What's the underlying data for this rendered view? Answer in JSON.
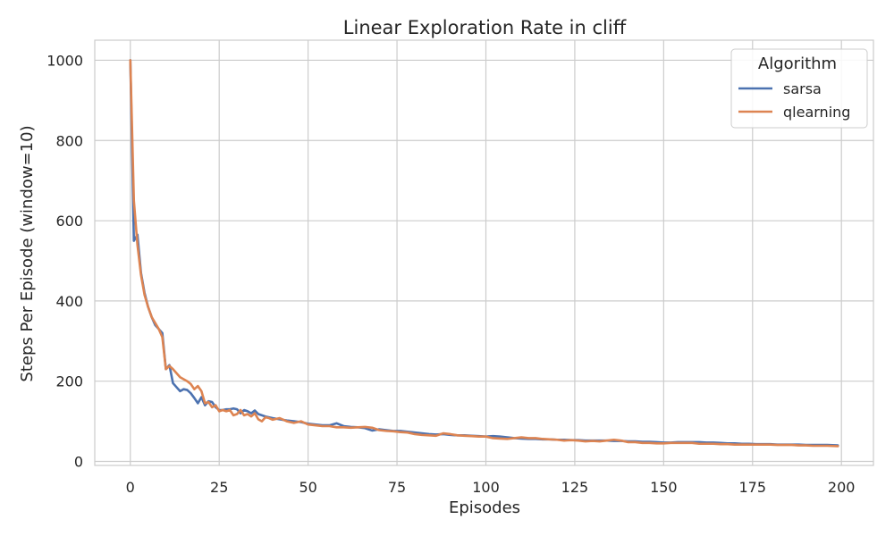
{
  "chart_data": {
    "type": "line",
    "title": "Linear Exploration Rate in cliff",
    "xlabel": "Episodes",
    "ylabel": "Steps Per Episode (window=10)",
    "xlim": [
      -10,
      209
    ],
    "ylim": [
      -10,
      1050
    ],
    "xticks": [
      0,
      25,
      50,
      75,
      100,
      125,
      150,
      175,
      200
    ],
    "yticks": [
      0,
      200,
      400,
      600,
      800,
      1000
    ],
    "xtick_labels": [
      "0",
      "25",
      "50",
      "75",
      "100",
      "125",
      "150",
      "175",
      "200"
    ],
    "ytick_labels": [
      "0",
      "200",
      "400",
      "600",
      "800",
      "1000"
    ],
    "grid": true,
    "legend": {
      "title": "Algorithm",
      "position": "top-right"
    },
    "series": [
      {
        "name": "sarsa",
        "color": "#4c72b0",
        "points": [
          [
            0,
            1000
          ],
          [
            1,
            550
          ],
          [
            2,
            565
          ],
          [
            3,
            470
          ],
          [
            4,
            420
          ],
          [
            5,
            385
          ],
          [
            6,
            360
          ],
          [
            7,
            340
          ],
          [
            8,
            330
          ],
          [
            9,
            320
          ],
          [
            10,
            230
          ],
          [
            11,
            240
          ],
          [
            12,
            195
          ],
          [
            13,
            185
          ],
          [
            14,
            175
          ],
          [
            15,
            180
          ],
          [
            16,
            178
          ],
          [
            17,
            170
          ],
          [
            18,
            158
          ],
          [
            19,
            145
          ],
          [
            20,
            160
          ],
          [
            21,
            140
          ],
          [
            22,
            150
          ],
          [
            23,
            148
          ],
          [
            24,
            135
          ],
          [
            25,
            128
          ],
          [
            26,
            128
          ],
          [
            27,
            130
          ],
          [
            28,
            130
          ],
          [
            29,
            132
          ],
          [
            30,
            130
          ],
          [
            31,
            120
          ],
          [
            32,
            128
          ],
          [
            33,
            125
          ],
          [
            34,
            120
          ],
          [
            35,
            127
          ],
          [
            36,
            118
          ],
          [
            37,
            115
          ],
          [
            38,
            112
          ],
          [
            39,
            110
          ],
          [
            40,
            108
          ],
          [
            42,
            105
          ],
          [
            44,
            102
          ],
          [
            46,
            100
          ],
          [
            48,
            98
          ],
          [
            50,
            94
          ],
          [
            52,
            92
          ],
          [
            54,
            90
          ],
          [
            56,
            90
          ],
          [
            58,
            95
          ],
          [
            60,
            88
          ],
          [
            62,
            86
          ],
          [
            64,
            85
          ],
          [
            66,
            83
          ],
          [
            68,
            77
          ],
          [
            70,
            80
          ],
          [
            72,
            78
          ],
          [
            74,
            76
          ],
          [
            76,
            76
          ],
          [
            78,
            74
          ],
          [
            80,
            72
          ],
          [
            82,
            70
          ],
          [
            84,
            68
          ],
          [
            86,
            67
          ],
          [
            88,
            68
          ],
          [
            90,
            66
          ],
          [
            92,
            65
          ],
          [
            94,
            65
          ],
          [
            96,
            64
          ],
          [
            98,
            63
          ],
          [
            100,
            62
          ],
          [
            102,
            63
          ],
          [
            104,
            62
          ],
          [
            106,
            60
          ],
          [
            108,
            58
          ],
          [
            110,
            57
          ],
          [
            112,
            56
          ],
          [
            114,
            56
          ],
          [
            116,
            55
          ],
          [
            118,
            55
          ],
          [
            120,
            54
          ],
          [
            122,
            54
          ],
          [
            124,
            53
          ],
          [
            126,
            53
          ],
          [
            128,
            52
          ],
          [
            130,
            52
          ],
          [
            132,
            52
          ],
          [
            134,
            52
          ],
          [
            136,
            51
          ],
          [
            138,
            51
          ],
          [
            140,
            50
          ],
          [
            142,
            50
          ],
          [
            144,
            49
          ],
          [
            146,
            49
          ],
          [
            148,
            48
          ],
          [
            150,
            47
          ],
          [
            152,
            47
          ],
          [
            154,
            48
          ],
          [
            156,
            48
          ],
          [
            158,
            48
          ],
          [
            160,
            48
          ],
          [
            162,
            47
          ],
          [
            164,
            47
          ],
          [
            166,
            46
          ],
          [
            168,
            45
          ],
          [
            170,
            45
          ],
          [
            172,
            44
          ],
          [
            174,
            44
          ],
          [
            176,
            43
          ],
          [
            178,
            43
          ],
          [
            180,
            43
          ],
          [
            182,
            42
          ],
          [
            184,
            42
          ],
          [
            186,
            42
          ],
          [
            188,
            42
          ],
          [
            190,
            41
          ],
          [
            192,
            41
          ],
          [
            194,
            41
          ],
          [
            196,
            41
          ],
          [
            199,
            40
          ]
        ]
      },
      {
        "name": "qlearning",
        "color": "#dd8452",
        "points": [
          [
            0,
            1000
          ],
          [
            1,
            650
          ],
          [
            2,
            540
          ],
          [
            3,
            465
          ],
          [
            4,
            415
          ],
          [
            5,
            385
          ],
          [
            6,
            360
          ],
          [
            7,
            345
          ],
          [
            8,
            330
          ],
          [
            9,
            310
          ],
          [
            10,
            230
          ],
          [
            11,
            238
          ],
          [
            12,
            230
          ],
          [
            13,
            220
          ],
          [
            14,
            210
          ],
          [
            15,
            205
          ],
          [
            16,
            200
          ],
          [
            17,
            193
          ],
          [
            18,
            180
          ],
          [
            19,
            188
          ],
          [
            20,
            175
          ],
          [
            21,
            145
          ],
          [
            22,
            148
          ],
          [
            23,
            135
          ],
          [
            24,
            140
          ],
          [
            25,
            125
          ],
          [
            26,
            128
          ],
          [
            27,
            125
          ],
          [
            28,
            128
          ],
          [
            29,
            115
          ],
          [
            30,
            118
          ],
          [
            31,
            128
          ],
          [
            32,
            115
          ],
          [
            33,
            118
          ],
          [
            34,
            112
          ],
          [
            35,
            120
          ],
          [
            36,
            105
          ],
          [
            37,
            100
          ],
          [
            38,
            110
          ],
          [
            39,
            108
          ],
          [
            40,
            104
          ],
          [
            42,
            108
          ],
          [
            44,
            100
          ],
          [
            46,
            96
          ],
          [
            48,
            100
          ],
          [
            50,
            92
          ],
          [
            52,
            90
          ],
          [
            54,
            88
          ],
          [
            56,
            88
          ],
          [
            58,
            85
          ],
          [
            60,
            85
          ],
          [
            62,
            84
          ],
          [
            64,
            85
          ],
          [
            66,
            86
          ],
          [
            68,
            84
          ],
          [
            70,
            78
          ],
          [
            72,
            76
          ],
          [
            74,
            75
          ],
          [
            76,
            73
          ],
          [
            78,
            72
          ],
          [
            80,
            68
          ],
          [
            82,
            66
          ],
          [
            84,
            65
          ],
          [
            86,
            64
          ],
          [
            88,
            70
          ],
          [
            90,
            68
          ],
          [
            92,
            65
          ],
          [
            94,
            64
          ],
          [
            96,
            63
          ],
          [
            98,
            62
          ],
          [
            100,
            62
          ],
          [
            102,
            58
          ],
          [
            104,
            57
          ],
          [
            106,
            56
          ],
          [
            108,
            58
          ],
          [
            110,
            60
          ],
          [
            112,
            58
          ],
          [
            114,
            58
          ],
          [
            116,
            56
          ],
          [
            118,
            55
          ],
          [
            120,
            54
          ],
          [
            122,
            52
          ],
          [
            124,
            53
          ],
          [
            126,
            52
          ],
          [
            128,
            50
          ],
          [
            130,
            51
          ],
          [
            132,
            50
          ],
          [
            134,
            52
          ],
          [
            136,
            54
          ],
          [
            138,
            52
          ],
          [
            140,
            48
          ],
          [
            142,
            48
          ],
          [
            144,
            46
          ],
          [
            146,
            46
          ],
          [
            148,
            45
          ],
          [
            150,
            45
          ],
          [
            152,
            46
          ],
          [
            154,
            46
          ],
          [
            156,
            46
          ],
          [
            158,
            46
          ],
          [
            160,
            44
          ],
          [
            162,
            44
          ],
          [
            164,
            44
          ],
          [
            166,
            43
          ],
          [
            168,
            43
          ],
          [
            170,
            42
          ],
          [
            172,
            42
          ],
          [
            174,
            42
          ],
          [
            176,
            42
          ],
          [
            178,
            42
          ],
          [
            180,
            42
          ],
          [
            182,
            41
          ],
          [
            184,
            41
          ],
          [
            186,
            41
          ],
          [
            188,
            40
          ],
          [
            190,
            40
          ],
          [
            192,
            39
          ],
          [
            194,
            39
          ],
          [
            196,
            39
          ],
          [
            199,
            38
          ]
        ]
      }
    ]
  }
}
